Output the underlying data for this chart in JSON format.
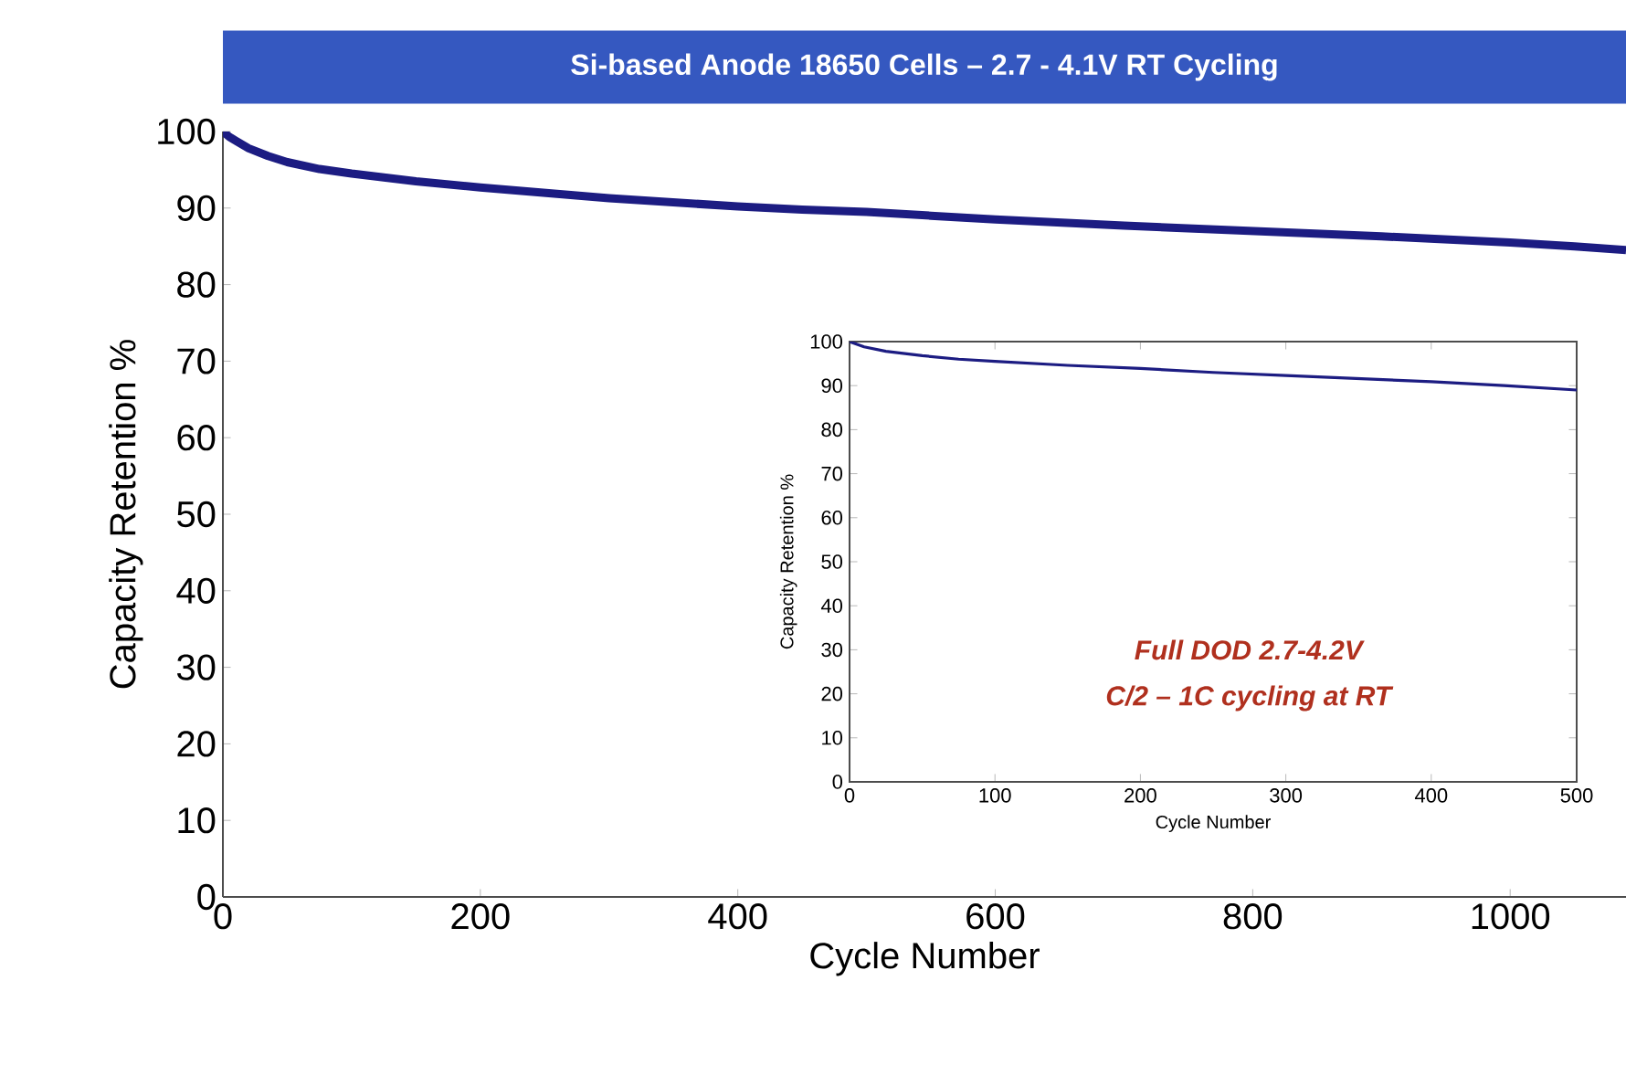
{
  "chart_data": [
    {
      "type": "line",
      "title": "Si-based Anode 18650 Cells – 2.7 - 4.1V RT Cycling",
      "xlabel": "Cycle Number",
      "ylabel": "Capacity Retention  %",
      "x": [
        0,
        5,
        10,
        20,
        35,
        50,
        75,
        100,
        150,
        200,
        250,
        300,
        400,
        450,
        500,
        550,
        600,
        700,
        800,
        900,
        1000,
        1050,
        1090
      ],
      "series": [
        {
          "color": "#1c1c82",
          "values": [
            100,
            99.3,
            98.8,
            97.8,
            96.8,
            96,
            95.1,
            94.5,
            93.5,
            92.7,
            92,
            91.3,
            90.2,
            89.8,
            89.5,
            89,
            88.5,
            87.7,
            87,
            86.3,
            85.5,
            85,
            84.5
          ]
        }
      ],
      "xlim": [
        0,
        1090
      ],
      "ylim": [
        0,
        100
      ],
      "xticks": [
        0,
        200,
        400,
        600,
        800,
        1000
      ],
      "yticks": [
        0,
        10,
        20,
        30,
        40,
        50,
        60,
        70,
        80,
        90,
        100
      ]
    },
    {
      "type": "line",
      "xlabel": "Cycle Number",
      "ylabel": "Capacity Retention %",
      "x": [
        0,
        10,
        25,
        50,
        75,
        100,
        150,
        200,
        250,
        300,
        350,
        400,
        450,
        500
      ],
      "series": [
        {
          "color": "#1c1c82",
          "values": [
            100,
            98.8,
            97.8,
            96.8,
            96,
            95.5,
            94.6,
            93.9,
            93,
            92.3,
            91.6,
            90.9,
            90,
            89
          ]
        }
      ],
      "xlim": [
        0,
        500
      ],
      "ylim": [
        0,
        100
      ],
      "xticks": [
        0,
        100,
        200,
        300,
        400,
        500
      ],
      "yticks": [
        0,
        10,
        20,
        30,
        40,
        50,
        60,
        70,
        80,
        90,
        100
      ],
      "annotations": [
        "*Full  DOD 2.7-4.2V*",
        "*C/2 – 1C cycling  at RT*"
      ]
    }
  ]
}
